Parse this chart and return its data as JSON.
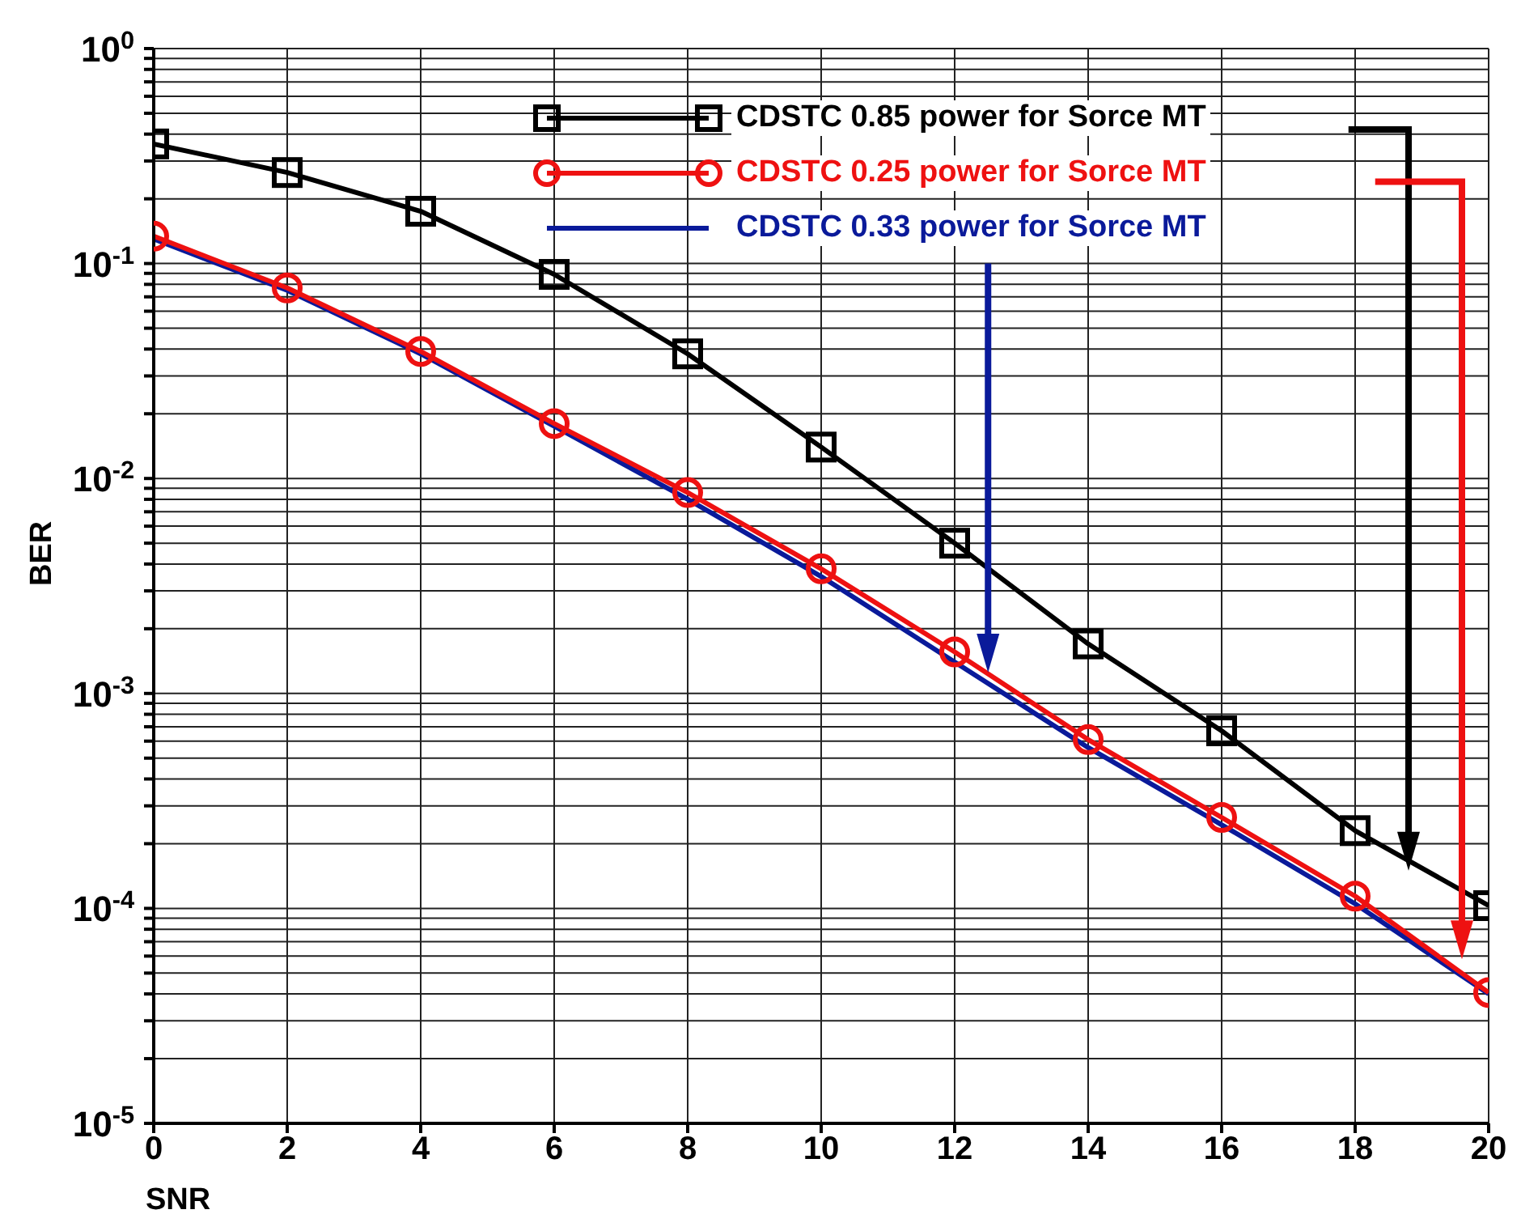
{
  "chart_data": {
    "type": "line",
    "xlabel": "SNR",
    "ylabel": "BER",
    "log": "y",
    "x": [
      0,
      2,
      4,
      6,
      8,
      10,
      12,
      14,
      16,
      18,
      20
    ],
    "series": [
      {
        "name": "CDSTC 0.85 power for Sorce MT",
        "color": "#000000",
        "marker": "square",
        "values": [
          0.36,
          0.265,
          0.175,
          0.089,
          0.038,
          0.014,
          0.005,
          0.0017,
          0.00067,
          0.00023,
          0.000103
        ]
      },
      {
        "name": "CDSTC 0.25 power for Sorce MT",
        "color": "#ee1111",
        "marker": "circle",
        "values": [
          0.134,
          0.077,
          0.039,
          0.018,
          0.0086,
          0.0038,
          0.00156,
          0.00061,
          0.000265,
          0.000114,
          4.06e-05
        ]
      },
      {
        "name": "CDSTC 0.33 power for Sorce MT",
        "color": "#0a1a9a",
        "marker": "none",
        "values": [
          0.13,
          0.075,
          0.038,
          0.0175,
          0.008,
          0.0035,
          0.0014,
          0.00056,
          0.000245,
          0.000105,
          4e-05
        ]
      }
    ],
    "xlim": [
      0,
      20
    ],
    "xticks": [
      0,
      2,
      4,
      6,
      8,
      10,
      12,
      14,
      16,
      18,
      20
    ],
    "ylim": [
      1e-05,
      1
    ],
    "yticks": [
      {
        "value": 1e-05,
        "label": "10$^{-5}$"
      },
      {
        "value": 2e-05,
        "label": null
      },
      {
        "value": 3e-05,
        "label": null
      },
      {
        "value": 4e-05,
        "label": null
      },
      {
        "value": 5e-05,
        "label": null
      },
      {
        "value": 6e-05,
        "label": null
      },
      {
        "value": 7e-05,
        "label": null
      },
      {
        "value": 8e-05,
        "label": null
      },
      {
        "value": 9e-05,
        "label": null
      },
      {
        "value": 0.0001,
        "label": "10$^{-4}$"
      },
      {
        "value": 0.0002,
        "label": null
      },
      {
        "value": 0.0003,
        "label": null
      },
      {
        "value": 0.0004,
        "label": null
      },
      {
        "value": 0.0005,
        "label": null
      },
      {
        "value": 0.0006,
        "label": null
      },
      {
        "value": 0.0007,
        "label": null
      },
      {
        "value": 0.0008,
        "label": null
      },
      {
        "value": 0.0009,
        "label": null
      },
      {
        "value": 0.001,
        "label": "10$^{-3}$"
      },
      {
        "value": 0.002,
        "label": null
      },
      {
        "value": 0.003,
        "label": null
      },
      {
        "value": 0.004,
        "label": null
      },
      {
        "value": 0.005,
        "label": null
      },
      {
        "value": 0.006,
        "label": null
      },
      {
        "value": 0.007,
        "label": null
      },
      {
        "value": 0.008,
        "label": null
      },
      {
        "value": 0.009,
        "label": null
      },
      {
        "value": 0.01,
        "label": "10$^{-2}$"
      },
      {
        "value": 0.02,
        "label": null
      },
      {
        "value": 0.03,
        "label": null
      },
      {
        "value": 0.04,
        "label": null
      },
      {
        "value": 0.05,
        "label": null
      },
      {
        "value": 0.06,
        "label": null
      },
      {
        "value": 0.07,
        "label": null
      },
      {
        "value": 0.08,
        "label": null
      },
      {
        "value": 0.09,
        "label": null
      },
      {
        "value": 0.1,
        "label": "10$^{-1}$"
      },
      {
        "value": 0.2,
        "label": null
      },
      {
        "value": 0.3,
        "label": null
      },
      {
        "value": 0.4,
        "label": null
      },
      {
        "value": 0.5,
        "label": null
      },
      {
        "value": 0.6,
        "label": null
      },
      {
        "value": 0.7,
        "label": null
      },
      {
        "value": 0.8,
        "label": null
      },
      {
        "value": 0.9,
        "label": null
      },
      {
        "value": 1,
        "label": "10$^{0}$"
      }
    ],
    "grid": true,
    "legend": "top right"
  }
}
